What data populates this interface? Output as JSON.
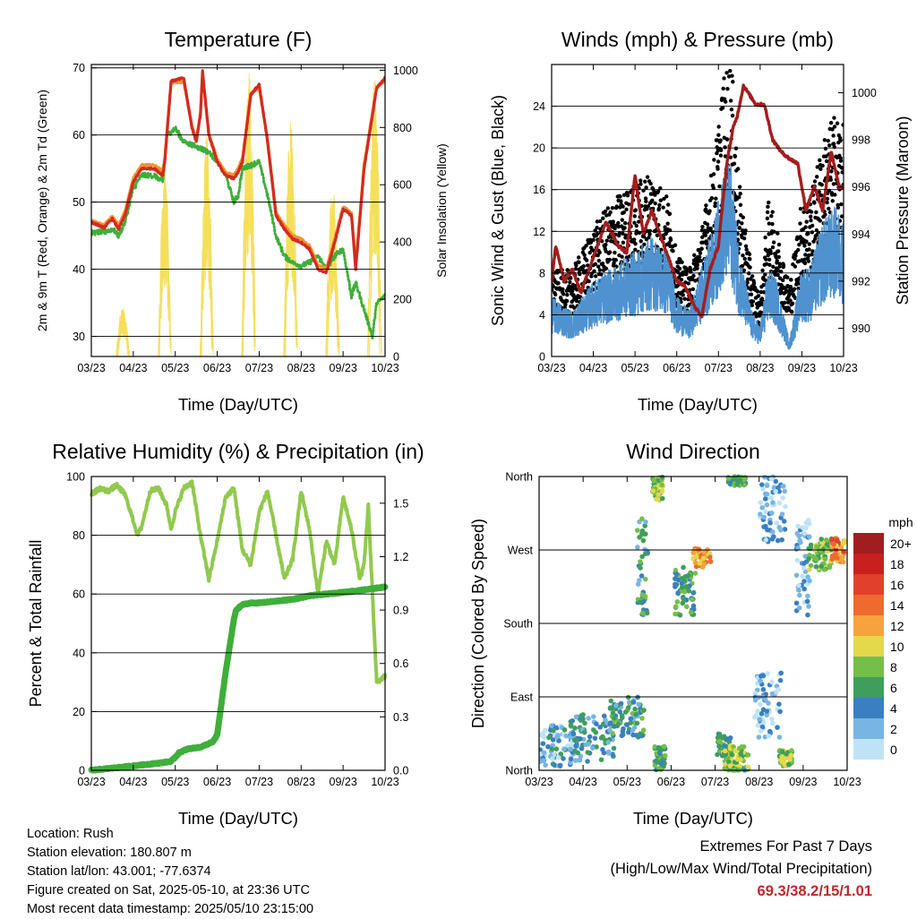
{
  "colors": {
    "temp2m": "#d42a20",
    "temp9m": "#f0952f",
    "dewpoint": "#3fae3a",
    "solar": "#f5df5a",
    "wind": "#4f92cf",
    "gust": "#000000",
    "pressure": "#a41d1d",
    "rh": "#91c94e",
    "precip": "#3fae3a",
    "extremes": "#c1272d"
  },
  "info": {
    "location": "Location: Rush",
    "elevation": "Station elevation: 180.807 m",
    "latlon": "Station lat/lon: 43.001; -77.6374",
    "created": "Figure created on Sat, 2025-05-10, at 23:36 UTC",
    "latest": "Most recent data timestamp: 2025/05/10 23:15:00"
  },
  "extremes": {
    "title": "Extremes For Past 7 Days",
    "subtitle": "(High/Low/Max Wind/Total Precipitation)",
    "values": "69.3/38.2/15/1.01"
  },
  "chart_data": [
    {
      "type": "line",
      "title": "Temperature (F)",
      "xlabel": "Time (Day/UTC)",
      "ylabel": "2m & 9m T (Red, Orange) & 2m Td (Green)",
      "ylabel_right": "Solar Insolation (Yellow)",
      "xticks": [
        "03/23",
        "04/23",
        "05/23",
        "06/23",
        "07/23",
        "08/23",
        "09/23",
        "10/23"
      ],
      "xlim": [
        0,
        7
      ],
      "ylim": [
        27,
        70.5
      ],
      "yticks": [
        30,
        40,
        50,
        60,
        70
      ],
      "ylim_right": [
        0,
        1020
      ],
      "yticks_right": [
        0,
        200,
        400,
        600,
        800,
        1000
      ],
      "series": [
        {
          "key": "t2m",
          "color_key": "temp2m",
          "x": [
            0,
            0.3,
            0.5,
            0.65,
            0.8,
            1.0,
            1.2,
            1.5,
            1.7,
            1.75,
            1.9,
            2.2,
            2.4,
            2.5,
            2.6,
            2.65,
            2.8,
            3.0,
            3.2,
            3.4,
            3.5,
            3.6,
            3.8,
            4.0,
            4.2,
            4.4,
            4.6,
            4.8,
            5.0,
            5.2,
            5.4,
            5.6,
            5.8,
            6.0,
            6.2,
            6.3,
            6.5,
            6.8,
            7.0
          ],
          "y": [
            47,
            46.2,
            47.5,
            46,
            48,
            53,
            55,
            55,
            54,
            56,
            68,
            68.5,
            61,
            59,
            63,
            69.5,
            60,
            56,
            54,
            53.5,
            54.5,
            56,
            66,
            67.5,
            59,
            48,
            46,
            44.5,
            44,
            43,
            40,
            39.5,
            44,
            49,
            48,
            40,
            55,
            67,
            68.5
          ]
        },
        {
          "key": "t9m",
          "color_key": "temp9m",
          "x": [
            0,
            0.3,
            0.5,
            0.65,
            0.8,
            1.0,
            1.2,
            1.5,
            1.7,
            1.75,
            1.9,
            2.2,
            2.4,
            2.5,
            2.6,
            2.65,
            2.8,
            3.0,
            3.2,
            3.4,
            3.5,
            3.6,
            3.8,
            4.0,
            4.2,
            4.4,
            4.6,
            4.8,
            5.0,
            5.2,
            5.4,
            5.6,
            5.8,
            6.0,
            6.2,
            6.3,
            6.5,
            6.8,
            7.0
          ],
          "y": [
            47.3,
            46.6,
            47.9,
            46.5,
            48.6,
            53.6,
            55.5,
            55.5,
            54.6,
            56.6,
            67.8,
            67.9,
            61.3,
            59.4,
            63.3,
            69.1,
            60.2,
            56.4,
            54.4,
            54,
            55,
            56.5,
            66.2,
            67,
            59.3,
            48.4,
            46.5,
            45,
            44.5,
            43.5,
            40.6,
            40.1,
            44.5,
            49.3,
            48.4,
            40.6,
            55.6,
            67.2,
            68
          ]
        },
        {
          "key": "td2m",
          "color_key": "dewpoint",
          "x": [
            0,
            0.3,
            0.5,
            0.65,
            0.8,
            1.0,
            1.2,
            1.5,
            1.7,
            1.8,
            2.0,
            2.2,
            2.4,
            2.6,
            2.8,
            3.0,
            3.2,
            3.4,
            3.5,
            3.6,
            3.8,
            4.0,
            4.2,
            4.4,
            4.6,
            4.8,
            5.0,
            5.2,
            5.4,
            5.6,
            5.8,
            6.0,
            6.2,
            6.3,
            6.5,
            6.7,
            6.8,
            7.0
          ],
          "y": [
            45.5,
            45.5,
            46,
            45,
            47,
            52,
            54,
            54,
            53,
            60,
            61,
            59,
            58.5,
            58,
            57.5,
            56,
            54,
            50,
            51,
            55,
            55.5,
            56,
            51,
            45,
            42,
            41,
            40.5,
            41,
            42,
            40,
            42,
            43,
            36,
            38,
            34,
            30,
            35,
            36
          ]
        },
        {
          "key": "solar",
          "color_key": "solar",
          "axis": "right",
          "style": "daily-bell",
          "x": [
            0.75,
            1.75,
            2.75,
            3.75,
            4.75,
            5.75,
            6.75
          ],
          "y": [
            180,
            660,
            800,
            1000,
            820,
            600,
            1000
          ]
        }
      ]
    },
    {
      "type": "line",
      "title": "Winds (mph) & Pressure (mb)",
      "xlabel": "Time (Day/UTC)",
      "ylabel": "Sonic Wind & Gust (Blue, Black)",
      "ylabel_right": "Station Pressure (Maroon)",
      "xticks": [
        "03/23",
        "04/23",
        "05/23",
        "06/23",
        "07/23",
        "08/23",
        "09/23",
        "10/23"
      ],
      "xlim": [
        0,
        7
      ],
      "ylim": [
        0,
        28
      ],
      "yticks": [
        0,
        4,
        8,
        12,
        16,
        20,
        24
      ],
      "ylim_right": [
        988.8,
        1001.2
      ],
      "yticks_right": [
        990,
        992,
        994,
        996,
        998,
        1000
      ],
      "series": [
        {
          "key": "wind",
          "color_key": "wind",
          "style": "noisy",
          "x": [
            0,
            0.5,
            1.0,
            1.5,
            2.0,
            2.4,
            2.8,
            3.0,
            3.3,
            3.6,
            3.9,
            4.1,
            4.3,
            4.5,
            4.8,
            5.0,
            5.2,
            5.4,
            5.7,
            6.0,
            6.2,
            6.5,
            6.8,
            7.0
          ],
          "y": [
            4,
            3,
            5,
            6,
            7,
            8,
            7,
            4,
            3,
            6,
            9,
            12,
            13,
            7,
            3,
            2,
            6,
            5,
            1,
            6,
            6,
            9,
            10,
            9
          ]
        },
        {
          "key": "gust",
          "color_key": "gust",
          "style": "scatter",
          "x": [
            0,
            0.5,
            1.0,
            1.5,
            2.0,
            2.4,
            2.8,
            3.0,
            3.3,
            3.6,
            3.9,
            4.1,
            4.3,
            4.5,
            4.8,
            5.0,
            5.2,
            5.4,
            5.7,
            6.0,
            6.2,
            6.5,
            6.8,
            7.0
          ],
          "y": [
            6,
            6,
            9,
            11,
            12,
            13,
            11,
            7,
            6,
            9,
            14,
            19,
            21,
            12,
            6,
            4,
            11,
            9,
            5,
            11,
            11,
            15,
            17,
            16
          ]
        },
        {
          "key": "pressure",
          "color_key": "pressure",
          "axis": "right",
          "x": [
            0,
            0.1,
            0.3,
            0.5,
            0.7,
            1.0,
            1.3,
            1.6,
            1.8,
            2.0,
            2.2,
            2.4,
            2.7,
            3.0,
            3.2,
            3.4,
            3.6,
            3.8,
            4.0,
            4.2,
            4.35,
            4.45,
            4.6,
            4.9,
            5.1,
            5.3,
            5.5,
            5.7,
            5.9,
            6.1,
            6.3,
            6.5,
            6.7,
            6.9,
            7.0
          ],
          "y": [
            992,
            993.5,
            992,
            992.5,
            991.5,
            993,
            994.5,
            993.5,
            993.2,
            996.5,
            994,
            995,
            993.5,
            992,
            991.8,
            991,
            990.5,
            992.5,
            993.5,
            997,
            998.5,
            999,
            1000.3,
            999.5,
            999.5,
            998,
            997.5,
            997.2,
            997,
            995,
            996,
            995,
            997.5,
            996,
            996
          ]
        }
      ]
    },
    {
      "type": "line",
      "title": "Relative Humidity (%) & Precipitation (in)",
      "xlabel": "Time (Day/UTC)",
      "ylabel": "Percent & Total Rainfall",
      "xticks": [
        "03/23",
        "04/23",
        "05/23",
        "06/23",
        "07/23",
        "08/23",
        "09/23",
        "10/23"
      ],
      "xlim": [
        0,
        7
      ],
      "ylim": [
        0,
        100
      ],
      "yticks": [
        0,
        20,
        40,
        60,
        80,
        100
      ],
      "ylim_right": [
        0,
        1.65
      ],
      "yticks_right": [
        "0.0",
        "0.3",
        "0.6",
        "0.9",
        "1.2",
        "1.5"
      ],
      "series": [
        {
          "key": "rh",
          "color_key": "rh",
          "x": [
            0,
            0.2,
            0.4,
            0.6,
            0.8,
            1.0,
            1.1,
            1.2,
            1.4,
            1.6,
            1.8,
            1.9,
            2.0,
            2.2,
            2.4,
            2.6,
            2.8,
            3.0,
            3.2,
            3.4,
            3.6,
            3.8,
            4.0,
            4.2,
            4.4,
            4.6,
            4.8,
            5.0,
            5.2,
            5.4,
            5.6,
            5.8,
            6.0,
            6.2,
            6.4,
            6.5,
            6.6,
            6.8,
            7.0
          ],
          "y": [
            94,
            96,
            95,
            97,
            94,
            85,
            80,
            83,
            95,
            96,
            90,
            82,
            88,
            96,
            98,
            80,
            65,
            78,
            93,
            96,
            75,
            70,
            88,
            95,
            80,
            65,
            72,
            95,
            82,
            60,
            78,
            70,
            93,
            82,
            65,
            70,
            90,
            30,
            32
          ]
        },
        {
          "key": "precip",
          "color_key": "precip",
          "axis": "right",
          "x": [
            0,
            0.4,
            0.8,
            1.2,
            1.6,
            1.9,
            2.1,
            2.3,
            2.6,
            2.9,
            3.0,
            3.2,
            3.4,
            3.45,
            3.6,
            3.8,
            4.0,
            4.4,
            4.8,
            5.2,
            5.6,
            6.0,
            6.4,
            7.0
          ],
          "y": [
            0,
            0.01,
            0.02,
            0.03,
            0.04,
            0.05,
            0.1,
            0.12,
            0.13,
            0.16,
            0.2,
            0.55,
            0.85,
            0.9,
            0.93,
            0.94,
            0.94,
            0.95,
            0.96,
            0.98,
            0.99,
            1.0,
            1.01,
            1.03
          ]
        }
      ]
    },
    {
      "type": "scatter",
      "title": "Wind Direction",
      "xlabel": "Time (Day/UTC)",
      "ylabel": "Direction (Colored By Speed)",
      "xticks": [
        "03/23",
        "04/23",
        "05/23",
        "06/23",
        "07/23",
        "08/23",
        "09/23",
        "10/23"
      ],
      "xlim": [
        0,
        7
      ],
      "ylim": [
        0,
        360
      ],
      "ytick_values": [
        0,
        90,
        180,
        270,
        360
      ],
      "ytick_labels": [
        "North",
        "East",
        "South",
        "West",
        "North"
      ],
      "colorbar": {
        "title": "mph",
        "labels": [
          "20+",
          "18",
          "16",
          "14",
          "12",
          "10",
          "8",
          "6",
          "4",
          "2",
          "0"
        ],
        "colors": [
          "#a11d20",
          "#c8201f",
          "#e0402c",
          "#ef6a2f",
          "#f6a33d",
          "#e3d94b",
          "#74bf4a",
          "#3f9e5b",
          "#3a7fc0",
          "#78b5e3",
          "#bfe3f6"
        ]
      },
      "clusters": [
        {
          "x": 0.4,
          "dx": 0.4,
          "dir": 30,
          "ddir": 25,
          "speed": 3
        },
        {
          "x": 1.2,
          "dx": 0.5,
          "dir": 40,
          "ddir": 30,
          "speed": 4
        },
        {
          "x": 2.0,
          "dx": 0.4,
          "dir": 65,
          "ddir": 25,
          "speed": 5
        },
        {
          "x": 2.35,
          "dx": 0.12,
          "dir": 250,
          "ddir": 60,
          "speed": 5
        },
        {
          "x": 2.7,
          "dx": 0.12,
          "dir": 345,
          "ddir": 15,
          "speed": 8
        },
        {
          "x": 2.75,
          "dx": 0.12,
          "dir": 15,
          "ddir": 15,
          "speed": 6
        },
        {
          "x": 3.3,
          "dx": 0.25,
          "dir": 220,
          "ddir": 30,
          "speed": 6
        },
        {
          "x": 3.7,
          "dx": 0.2,
          "dir": 260,
          "ddir": 12,
          "speed": 12
        },
        {
          "x": 4.2,
          "dx": 0.15,
          "dir": 30,
          "ddir": 15,
          "speed": 7
        },
        {
          "x": 4.5,
          "dx": 0.3,
          "dir": 15,
          "ddir": 15,
          "speed": 8
        },
        {
          "x": 4.5,
          "dx": 0.2,
          "dir": 355,
          "ddir": 6,
          "speed": 6
        },
        {
          "x": 5.3,
          "dx": 0.3,
          "dir": 320,
          "ddir": 40,
          "speed": 2
        },
        {
          "x": 5.2,
          "dx": 0.3,
          "dir": 80,
          "ddir": 40,
          "speed": 2
        },
        {
          "x": 5.6,
          "dx": 0.15,
          "dir": 15,
          "ddir": 10,
          "speed": 8
        },
        {
          "x": 6.0,
          "dx": 0.15,
          "dir": 250,
          "ddir": 60,
          "speed": 2
        },
        {
          "x": 6.4,
          "dx": 0.3,
          "dir": 265,
          "ddir": 20,
          "speed": 8
        },
        {
          "x": 6.8,
          "dx": 0.15,
          "dir": 270,
          "ddir": 15,
          "speed": 13
        }
      ]
    }
  ]
}
